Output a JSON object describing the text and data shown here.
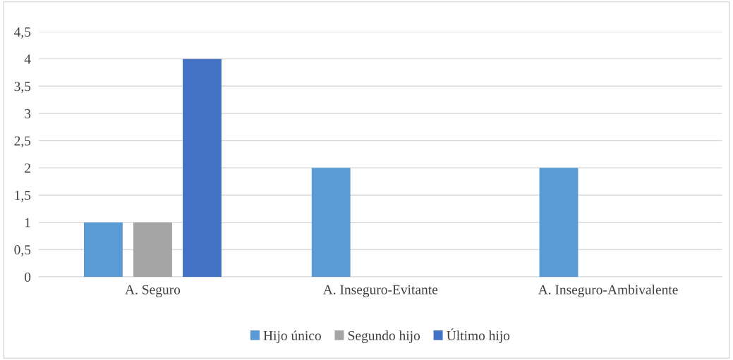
{
  "chart_data": {
    "type": "bar",
    "categories": [
      "A. Seguro",
      "A. Inseguro-Evitante",
      "A. Inseguro-Ambivalente"
    ],
    "series": [
      {
        "name": "Hijo único",
        "color": "#5b9bd5",
        "values": [
          1,
          2,
          2
        ]
      },
      {
        "name": "Segundo hijo",
        "color": "#a5a5a5",
        "values": [
          1,
          0,
          0
        ]
      },
      {
        "name": "Último hijo",
        "color": "#4472c4",
        "values": [
          4,
          0,
          0
        ]
      }
    ],
    "ylim": [
      0,
      4.5
    ],
    "yticks": [
      0,
      {
        "value": 0.5,
        "label": "0,5"
      },
      1,
      {
        "value": 1.5,
        "label": "1,5"
      },
      2,
      {
        "value": 2.5,
        "label": "2,5"
      },
      3,
      {
        "value": 3.5,
        "label": "3,5"
      },
      4,
      {
        "value": 4.5,
        "label": "4,5"
      }
    ],
    "grid": "y",
    "legend": "bottom"
  }
}
